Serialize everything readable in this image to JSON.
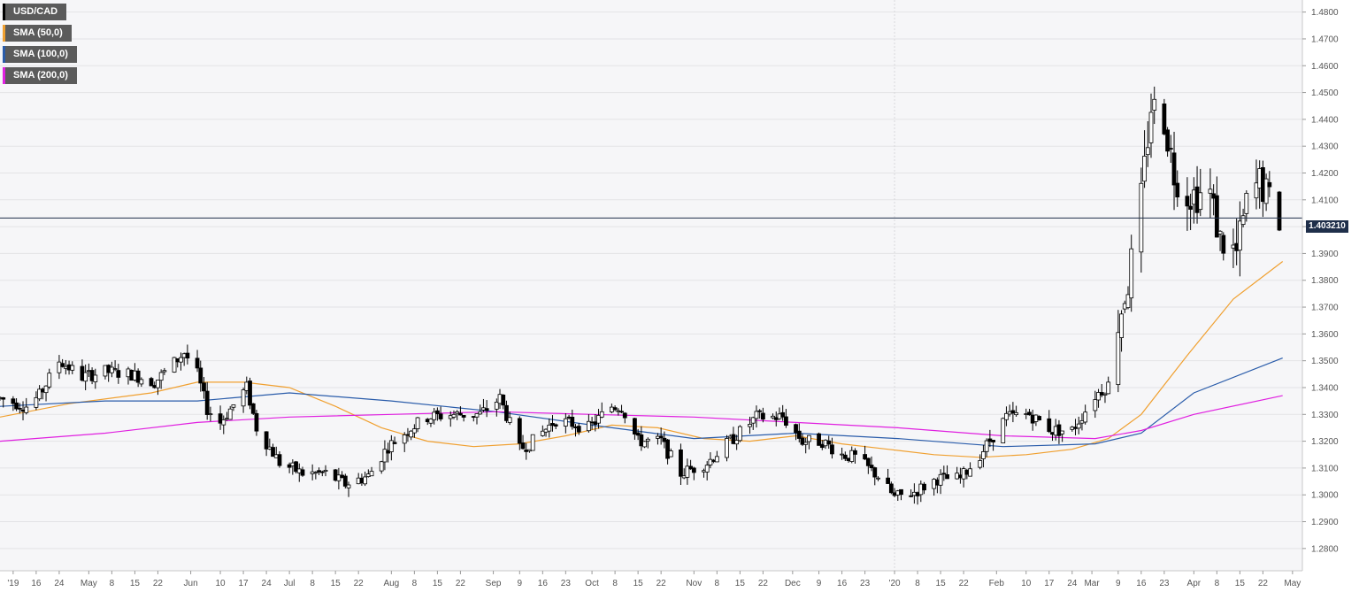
{
  "chart_data": {
    "type": "candlestick",
    "symbol": "USD/CAD",
    "last_price": "1.403210",
    "grid": true,
    "legend_position": "top-left",
    "y_axis": {
      "ylim": [
        1.2717,
        1.4845
      ],
      "ticks": [
        "1.2800",
        "1.2900",
        "1.3000",
        "1.3100",
        "1.3200",
        "1.3300",
        "1.3400",
        "1.3500",
        "1.3600",
        "1.3700",
        "1.3800",
        "1.3900",
        "1.4000",
        "1.4100",
        "1.4200",
        "1.4300",
        "1.4400",
        "1.4500",
        "1.4600",
        "1.4700",
        "1.4800"
      ]
    },
    "x_axis": {
      "start_date": "2019-04-04",
      "end_date": "2020-05-04",
      "ticks": [
        {
          "date": "2019-04-08",
          "label": "'19"
        },
        {
          "date": "2019-04-15",
          "label": "16"
        },
        {
          "date": "2019-04-22",
          "label": "24"
        },
        {
          "date": "2019-05-01",
          "label": "May"
        },
        {
          "date": "2019-05-08",
          "label": "8"
        },
        {
          "date": "2019-05-15",
          "label": "15"
        },
        {
          "date": "2019-05-22",
          "label": "22"
        },
        {
          "date": "2019-06-01",
          "label": "Jun"
        },
        {
          "date": "2019-06-10",
          "label": "10"
        },
        {
          "date": "2019-06-17",
          "label": "17"
        },
        {
          "date": "2019-06-24",
          "label": "24"
        },
        {
          "date": "2019-07-01",
          "label": "Jul"
        },
        {
          "date": "2019-07-08",
          "label": "8"
        },
        {
          "date": "2019-07-15",
          "label": "15"
        },
        {
          "date": "2019-07-22",
          "label": "22"
        },
        {
          "date": "2019-08-01",
          "label": "Aug"
        },
        {
          "date": "2019-08-08",
          "label": "8"
        },
        {
          "date": "2019-08-15",
          "label": "15"
        },
        {
          "date": "2019-08-22",
          "label": "22"
        },
        {
          "date": "2019-09-01",
          "label": "Sep"
        },
        {
          "date": "2019-09-09",
          "label": "9"
        },
        {
          "date": "2019-09-16",
          "label": "16"
        },
        {
          "date": "2019-09-23",
          "label": "23"
        },
        {
          "date": "2019-10-01",
          "label": "Oct"
        },
        {
          "date": "2019-10-08",
          "label": "8"
        },
        {
          "date": "2019-10-15",
          "label": "15"
        },
        {
          "date": "2019-10-22",
          "label": "22"
        },
        {
          "date": "2019-11-01",
          "label": "Nov"
        },
        {
          "date": "2019-11-08",
          "label": "8"
        },
        {
          "date": "2019-11-15",
          "label": "15"
        },
        {
          "date": "2019-11-22",
          "label": "22"
        },
        {
          "date": "2019-12-01",
          "label": "Dec"
        },
        {
          "date": "2019-12-09",
          "label": "9"
        },
        {
          "date": "2019-12-16",
          "label": "16"
        },
        {
          "date": "2019-12-23",
          "label": "23"
        },
        {
          "date": "2020-01-01",
          "label": "'20"
        },
        {
          "date": "2020-01-08",
          "label": "8"
        },
        {
          "date": "2020-01-15",
          "label": "15"
        },
        {
          "date": "2020-01-22",
          "label": "22"
        },
        {
          "date": "2020-02-01",
          "label": "Feb"
        },
        {
          "date": "2020-02-10",
          "label": "10"
        },
        {
          "date": "2020-02-17",
          "label": "17"
        },
        {
          "date": "2020-02-24",
          "label": "24"
        },
        {
          "date": "2020-03-01",
          "label": "Mar"
        },
        {
          "date": "2020-03-09",
          "label": "9"
        },
        {
          "date": "2020-03-16",
          "label": "16"
        },
        {
          "date": "2020-03-23",
          "label": "23"
        },
        {
          "date": "2020-04-01",
          "label": "Apr"
        },
        {
          "date": "2020-04-08",
          "label": "8"
        },
        {
          "date": "2020-04-15",
          "label": "15"
        },
        {
          "date": "2020-04-22",
          "label": "22"
        },
        {
          "date": "2020-05-01",
          "label": "May"
        }
      ]
    },
    "series": [
      {
        "name": "USD/CAD",
        "type": "candlestick",
        "color": "#000000",
        "up_fill": "#ffffff",
        "down_fill": "#000000",
        "anchors": [
          [
            "2019-04-04",
            1.336
          ],
          [
            "2019-04-12",
            1.333
          ],
          [
            "2019-04-16",
            1.337
          ],
          [
            "2019-04-22",
            1.35
          ],
          [
            "2019-04-29",
            1.344
          ],
          [
            "2019-05-06",
            1.346
          ],
          [
            "2019-05-14",
            1.345
          ],
          [
            "2019-05-21",
            1.342
          ],
          [
            "2019-05-30",
            1.353
          ],
          [
            "2019-06-03",
            1.345
          ],
          [
            "2019-06-06",
            1.332
          ],
          [
            "2019-06-10",
            1.327
          ],
          [
            "2019-06-18",
            1.34
          ],
          [
            "2019-06-21",
            1.325
          ],
          [
            "2019-06-28",
            1.312
          ],
          [
            "2019-07-05",
            1.308
          ],
          [
            "2019-07-12",
            1.308
          ],
          [
            "2019-07-18",
            1.304
          ],
          [
            "2019-07-25",
            1.307
          ],
          [
            "2019-07-31",
            1.318
          ],
          [
            "2019-08-07",
            1.325
          ],
          [
            "2019-08-12",
            1.329
          ],
          [
            "2019-08-20",
            1.33
          ],
          [
            "2019-08-28",
            1.33
          ],
          [
            "2019-09-03",
            1.336
          ],
          [
            "2019-09-09",
            1.317
          ],
          [
            "2019-09-13",
            1.32
          ],
          [
            "2019-09-20",
            1.328
          ],
          [
            "2019-09-30",
            1.325
          ],
          [
            "2019-10-07",
            1.333
          ],
          [
            "2019-10-10",
            1.333
          ],
          [
            "2019-10-15",
            1.32
          ],
          [
            "2019-10-22",
            1.32
          ],
          [
            "2019-10-28",
            1.308
          ],
          [
            "2019-11-05",
            1.312
          ],
          [
            "2019-11-12",
            1.32
          ],
          [
            "2019-11-20",
            1.329
          ],
          [
            "2019-11-28",
            1.329
          ],
          [
            "2019-12-04",
            1.32
          ],
          [
            "2019-12-10",
            1.32
          ],
          [
            "2019-12-16",
            1.315
          ],
          [
            "2019-12-20",
            1.314
          ],
          [
            "2019-12-27",
            1.307
          ],
          [
            "2020-01-01",
            1.299
          ],
          [
            "2020-01-07",
            1.301
          ],
          [
            "2020-01-14",
            1.306
          ],
          [
            "2020-01-21",
            1.306
          ],
          [
            "2020-01-27",
            1.315
          ],
          [
            "2020-02-04",
            1.329
          ],
          [
            "2020-02-11",
            1.33
          ],
          [
            "2020-02-18",
            1.324
          ],
          [
            "2020-02-24",
            1.324
          ],
          [
            "2020-03-02",
            1.337
          ],
          [
            "2020-03-06",
            1.341
          ],
          [
            "2020-03-09",
            1.365
          ],
          [
            "2020-03-12",
            1.379
          ],
          [
            "2020-03-16",
            1.41
          ],
          [
            "2020-03-19",
            1.445
          ],
          [
            "2020-03-23",
            1.44
          ],
          [
            "2020-03-26",
            1.42
          ],
          [
            "2020-03-30",
            1.412
          ],
          [
            "2020-04-02",
            1.412
          ],
          [
            "2020-04-06",
            1.412
          ],
          [
            "2020-04-09",
            1.395
          ],
          [
            "2020-04-14",
            1.39
          ],
          [
            "2020-04-17",
            1.408
          ],
          [
            "2020-04-21",
            1.417
          ],
          [
            "2020-04-23",
            1.412
          ],
          [
            "2020-04-27",
            1.403
          ]
        ]
      },
      {
        "name": "SMA (50,0)",
        "type": "line",
        "color": "#f0a030",
        "points": [
          [
            "2019-04-04",
            1.329
          ],
          [
            "2019-04-25",
            1.334
          ],
          [
            "2019-05-20",
            1.338
          ],
          [
            "2019-06-03",
            1.342
          ],
          [
            "2019-06-17",
            1.342
          ],
          [
            "2019-07-01",
            1.34
          ],
          [
            "2019-07-15",
            1.333
          ],
          [
            "2019-07-29",
            1.325
          ],
          [
            "2019-08-12",
            1.32
          ],
          [
            "2019-08-26",
            1.318
          ],
          [
            "2019-09-09",
            1.319
          ],
          [
            "2019-09-23",
            1.322
          ],
          [
            "2019-10-07",
            1.326
          ],
          [
            "2019-10-21",
            1.325
          ],
          [
            "2019-11-04",
            1.321
          ],
          [
            "2019-11-18",
            1.32
          ],
          [
            "2019-12-02",
            1.322
          ],
          [
            "2019-12-16",
            1.319
          ],
          [
            "2019-12-30",
            1.317
          ],
          [
            "2020-01-13",
            1.315
          ],
          [
            "2020-01-27",
            1.314
          ],
          [
            "2020-02-10",
            1.315
          ],
          [
            "2020-02-24",
            1.317
          ],
          [
            "2020-03-06",
            1.321
          ],
          [
            "2020-03-16",
            1.33
          ],
          [
            "2020-03-30",
            1.352
          ],
          [
            "2020-04-13",
            1.373
          ],
          [
            "2020-04-28",
            1.387
          ]
        ]
      },
      {
        "name": "SMA (100,0)",
        "type": "line",
        "color": "#2a5caa",
        "points": [
          [
            "2019-04-04",
            1.333
          ],
          [
            "2019-05-06",
            1.335
          ],
          [
            "2019-06-03",
            1.335
          ],
          [
            "2019-07-01",
            1.338
          ],
          [
            "2019-08-01",
            1.335
          ],
          [
            "2019-09-02",
            1.331
          ],
          [
            "2019-10-01",
            1.326
          ],
          [
            "2019-11-01",
            1.321
          ],
          [
            "2019-12-02",
            1.323
          ],
          [
            "2020-01-02",
            1.321
          ],
          [
            "2020-02-03",
            1.318
          ],
          [
            "2020-03-02",
            1.319
          ],
          [
            "2020-03-16",
            1.323
          ],
          [
            "2020-04-01",
            1.338
          ],
          [
            "2020-04-28",
            1.351
          ]
        ]
      },
      {
        "name": "SMA (200,0)",
        "type": "line",
        "color": "#e020e0",
        "points": [
          [
            "2019-04-04",
            1.32
          ],
          [
            "2019-05-06",
            1.323
          ],
          [
            "2019-06-03",
            1.327
          ],
          [
            "2019-07-01",
            1.329
          ],
          [
            "2019-08-01",
            1.33
          ],
          [
            "2019-09-02",
            1.331
          ],
          [
            "2019-10-01",
            1.33
          ],
          [
            "2019-11-01",
            1.329
          ],
          [
            "2019-12-02",
            1.327
          ],
          [
            "2020-01-02",
            1.325
          ],
          [
            "2020-02-03",
            1.322
          ],
          [
            "2020-03-02",
            1.321
          ],
          [
            "2020-03-16",
            1.324
          ],
          [
            "2020-04-01",
            1.33
          ],
          [
            "2020-04-28",
            1.337
          ]
        ]
      }
    ]
  }
}
